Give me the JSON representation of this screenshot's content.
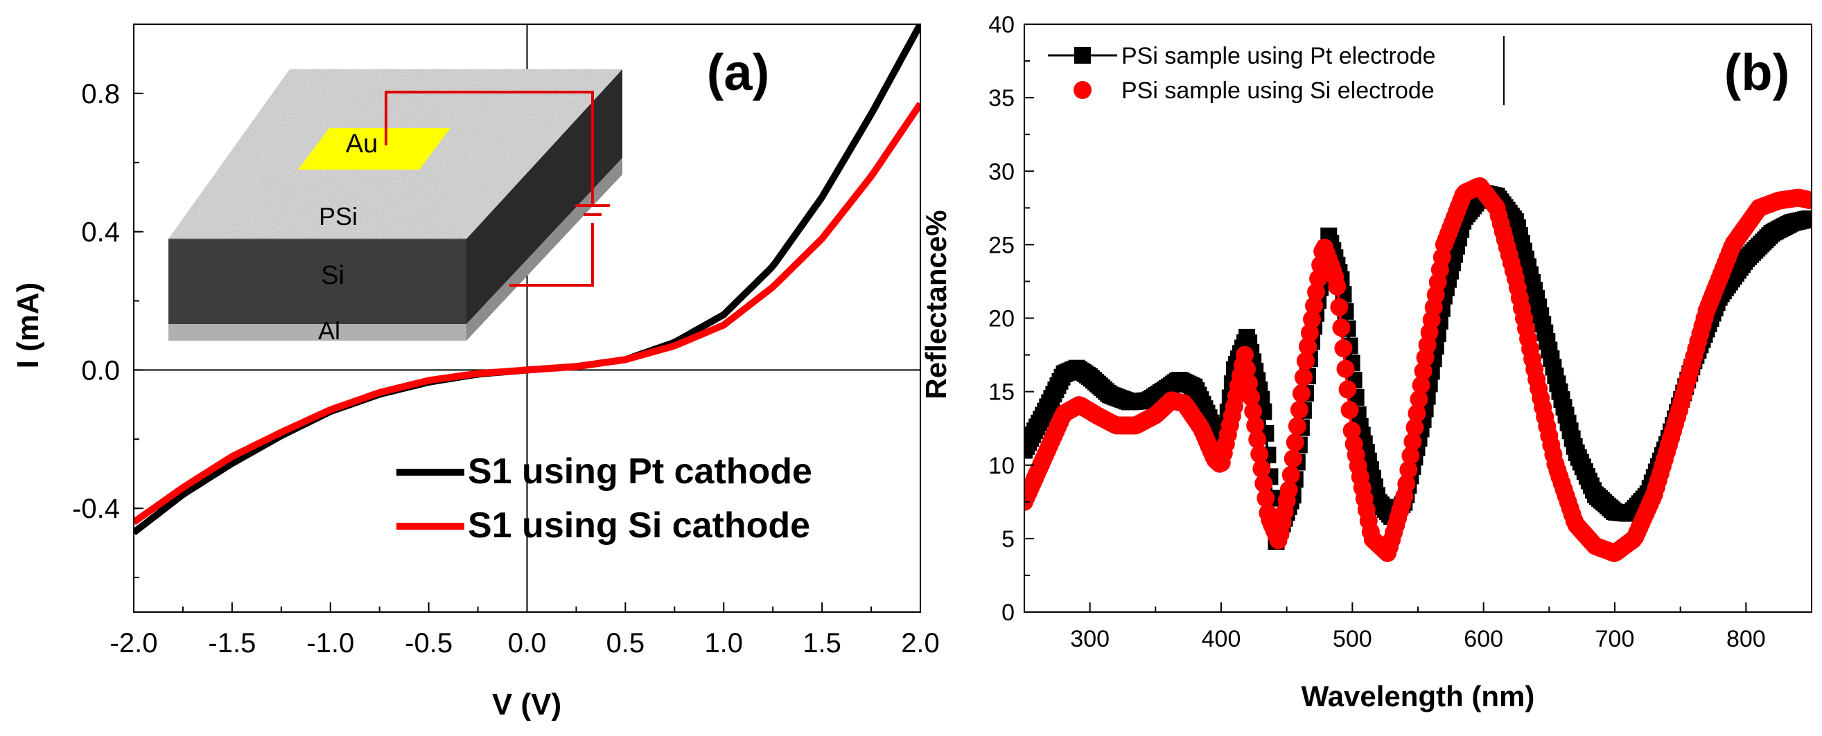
{
  "chart_data": [
    {
      "panel": "a",
      "type": "line",
      "panel_label": "(a)",
      "xlabel": "V (V)",
      "ylabel": "I (mA)",
      "xlim": [
        -2.0,
        2.0
      ],
      "ylim": [
        -0.7,
        1.0
      ],
      "xticks": [
        -2.0,
        -1.5,
        -1.0,
        -0.5,
        0.0,
        0.5,
        1.0,
        1.5,
        2.0
      ],
      "xtick_labels": [
        "-2.0",
        "-1.5",
        "-1.0",
        "-0.5",
        "0.0",
        "0.5",
        "1.0",
        "1.5",
        "2.0"
      ],
      "yticks": [
        -0.4,
        0.0,
        0.4,
        0.8
      ],
      "ytick_labels": [
        "-0.4",
        "0.0",
        "0.4",
        "0.8"
      ],
      "legend_position": "bottom-right",
      "series": [
        {
          "name": "S1 using Pt cathode",
          "color": "#000000",
          "x": [
            -2.0,
            -1.75,
            -1.5,
            -1.25,
            -1.0,
            -0.75,
            -0.5,
            -0.25,
            0.0,
            0.25,
            0.5,
            0.75,
            1.0,
            1.25,
            1.5,
            1.75,
            2.0
          ],
          "y": [
            -0.47,
            -0.36,
            -0.27,
            -0.19,
            -0.12,
            -0.07,
            -0.035,
            -0.012,
            0.0,
            0.01,
            0.03,
            0.08,
            0.16,
            0.3,
            0.5,
            0.74,
            1.0
          ]
        },
        {
          "name": "S1 using Si cathode",
          "color": "#ff0000",
          "x": [
            -2.0,
            -1.75,
            -1.5,
            -1.25,
            -1.0,
            -0.75,
            -0.5,
            -0.25,
            0.0,
            0.25,
            0.5,
            0.75,
            1.0,
            1.25,
            1.5,
            1.75,
            2.0
          ],
          "y": [
            -0.44,
            -0.34,
            -0.25,
            -0.18,
            -0.115,
            -0.065,
            -0.03,
            -0.01,
            0.0,
            0.01,
            0.03,
            0.07,
            0.13,
            0.24,
            0.38,
            0.56,
            0.77
          ]
        }
      ],
      "inset": {
        "layers": [
          "Au",
          "PSi",
          "Si",
          "Al"
        ],
        "colors": {
          "au": "#ffff00",
          "wire": "#e00000",
          "si": "#3a3a3a",
          "al": "#a8a8a8",
          "psi": "#b5b5b5"
        }
      }
    },
    {
      "panel": "b",
      "type": "scatter",
      "panel_label": "(b)",
      "xlabel": "Wavelength (nm)",
      "ylabel": "Reflectance%",
      "xlim": [
        250,
        850
      ],
      "ylim": [
        0,
        40
      ],
      "xticks": [
        300,
        400,
        500,
        600,
        700,
        800
      ],
      "xtick_labels": [
        "300",
        "400",
        "500",
        "600",
        "700",
        "800"
      ],
      "yticks": [
        0,
        5,
        10,
        15,
        20,
        25,
        30,
        35,
        40
      ],
      "ytick_labels": [
        "0",
        "5",
        "10",
        "15",
        "20",
        "25",
        "30",
        "35",
        "40"
      ],
      "legend_position": "top-left",
      "series": [
        {
          "name": "PSi sample using Pt electrode",
          "color": "#000000",
          "marker": "square",
          "x": [
            250,
            265,
            280,
            290,
            300,
            315,
            330,
            345,
            360,
            368,
            380,
            392,
            400,
            410,
            420,
            432,
            442,
            455,
            470,
            482,
            492,
            505,
            520,
            530,
            540,
            555,
            570,
            585,
            600,
            610,
            625,
            640,
            655,
            670,
            685,
            700,
            712,
            725,
            740,
            760,
            780,
            800,
            820,
            835,
            850
          ],
          "y": [
            11,
            13.5,
            16.2,
            16.6,
            16.0,
            14.8,
            14.3,
            14.4,
            15.3,
            15.8,
            15.3,
            13.0,
            10.5,
            16.5,
            18.8,
            14.0,
            4.8,
            8.0,
            19.0,
            25.6,
            22.5,
            13.0,
            7.5,
            6.5,
            7.5,
            13.5,
            21.5,
            26.8,
            28.5,
            28.3,
            26.5,
            21.5,
            16.0,
            11.0,
            8.0,
            6.8,
            6.7,
            8.0,
            11.5,
            17.0,
            21.5,
            24.0,
            25.8,
            26.5,
            26.8
          ]
        },
        {
          "name": "PSi sample using Si electrode",
          "color": "#ff0000",
          "marker": "circle",
          "x": [
            250,
            265,
            280,
            292,
            305,
            320,
            335,
            350,
            362,
            372,
            385,
            395,
            400,
            410,
            418,
            428,
            436,
            444,
            452,
            465,
            478,
            488,
            500,
            515,
            527,
            540,
            555,
            570,
            585,
            597,
            610,
            625,
            640,
            655,
            670,
            685,
            700,
            715,
            730,
            750,
            770,
            790,
            810,
            825,
            840,
            850
          ],
          "y": [
            7.5,
            10.5,
            13.5,
            14.1,
            13.4,
            12.7,
            12.7,
            13.4,
            14.4,
            14.2,
            12.5,
            10.4,
            10.0,
            14.0,
            17.5,
            11.5,
            6.5,
            4.8,
            8.5,
            17.5,
            25.0,
            22.5,
            12.0,
            5.0,
            4.0,
            8.0,
            17.0,
            25.0,
            28.5,
            29.0,
            27.5,
            22.5,
            16.0,
            10.0,
            6.0,
            4.5,
            4.0,
            5.0,
            8.0,
            14.0,
            20.5,
            25.0,
            27.5,
            28.0,
            28.2,
            28.0
          ]
        }
      ]
    }
  ]
}
